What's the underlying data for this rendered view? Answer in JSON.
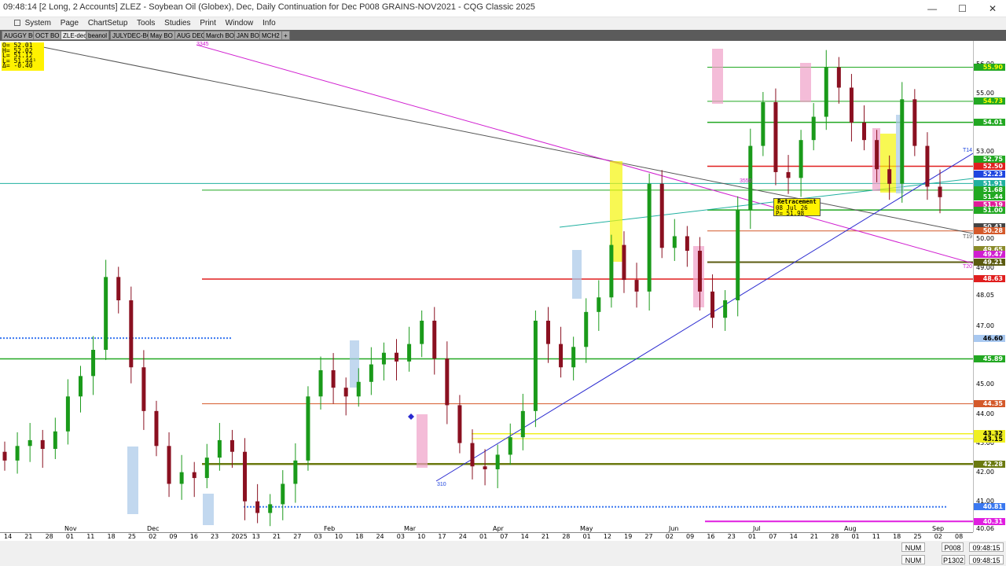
{
  "window": {
    "title": "09:48:14  [2 Long, 2 Accounts]  ZLEZ - Soybean Oil (Globex), Dec, Daily Continuation for Dec   P008 GRAINS-NOV2021 - CQG Classic 2025",
    "minimize": "—",
    "maximize": "☐",
    "close": "✕"
  },
  "menu": [
    "System",
    "Page",
    "ChartSetup",
    "Tools",
    "Studies",
    "Print",
    "Window",
    "Info"
  ],
  "tabs": [
    "AUGGY BO",
    "OCT BO",
    "ZLE-dec",
    "beanol",
    "JULYDEC-BO",
    "May BO",
    "AUG DEC",
    "March BO",
    "JAN BO",
    "MCH2",
    "+"
  ],
  "active_tab": "ZLE-dec",
  "ohlc": {
    "o": "O=  52.01",
    "h": "H=  52.02",
    "l": "L=  51.12",
    "last": "L=  51.44¹",
    "delta": "Δ=  -0.40"
  },
  "retracement": {
    "title": "Retracement",
    "date": "08  Jul  26",
    "price": "P=     51.98"
  },
  "annotations": {
    "a1": "3345",
    "a2": "3550",
    "a3": "310",
    "a4": "T14",
    "a5": "T19",
    "a6": "T20"
  },
  "price_labels": [
    "56.00",
    "55.00",
    "53.00",
    "51.00",
    "50.00",
    "49.00",
    "48.05",
    "47.00",
    "45.00",
    "44.00",
    "43.00",
    "42.00",
    "41.00",
    "40.06"
  ],
  "price_tags": [
    {
      "v": "55.90",
      "bg": "#22a822",
      "fg": "#ffff00"
    },
    {
      "v": "54.73",
      "bg": "#22a822",
      "fg": "#ffff00"
    },
    {
      "v": "54.01",
      "bg": "#22a822",
      "fg": "#ffffff"
    },
    {
      "v": "52.75",
      "bg": "#22a822",
      "fg": "#ffffff"
    },
    {
      "v": "52.50",
      "bg": "#e01e1e",
      "fg": "#ffffff"
    },
    {
      "v": "52.23",
      "bg": "#1e46e0",
      "fg": "#ffffff"
    },
    {
      "v": "51.91",
      "bg": "#20b0a0",
      "fg": "#ffffff"
    },
    {
      "v": "51.68",
      "bg": "#22a822",
      "fg": "#ffffff"
    },
    {
      "v": "51.44",
      "bg": "#22a822",
      "fg": "#ffffff"
    },
    {
      "v": "51.19",
      "bg": "#e01e9a",
      "fg": "#ffffff"
    },
    {
      "v": "51.00",
      "bg": "#22a822",
      "fg": "#ffffff"
    },
    {
      "v": "50.41",
      "bg": "#444444",
      "fg": "#ffffff"
    },
    {
      "v": "50.28",
      "bg": "#d4592a",
      "fg": "#ffffff"
    },
    {
      "v": "49.65",
      "bg": "#8a8a2a",
      "fg": "#ffffff"
    },
    {
      "v": "49.47",
      "bg": "#d01ed0",
      "fg": "#ffffff"
    },
    {
      "v": "49.21",
      "bg": "#5b5b10",
      "fg": "#ffffff"
    },
    {
      "v": "48.63",
      "bg": "#e01e1e",
      "fg": "#ffffff"
    },
    {
      "v": "46.60",
      "bg": "#a8c8f0",
      "fg": "#000000"
    },
    {
      "v": "45.89",
      "bg": "#22a822",
      "fg": "#ffffff"
    },
    {
      "v": "44.35",
      "bg": "#d4592a",
      "fg": "#ffffff"
    },
    {
      "v": "43.32",
      "bg": "#f0f020",
      "fg": "#000000"
    },
    {
      "v": "43.15",
      "bg": "#f0f020",
      "fg": "#000000"
    },
    {
      "v": "42.28",
      "bg": "#6b7a10",
      "fg": "#ffffff"
    },
    {
      "v": "40.81",
      "bg": "#3a78f0",
      "fg": "#ffffff"
    },
    {
      "v": "40.31",
      "bg": "#e01ee0",
      "fg": "#ffffff"
    }
  ],
  "x_days": [
    "14",
    "21",
    "28",
    "01",
    "11",
    "18",
    "25",
    "02",
    "09",
    "16",
    "23",
    "2025",
    "13",
    "21",
    "27",
    "03",
    "10",
    "18",
    "24",
    "03",
    "10",
    "17",
    "24",
    "01",
    "07",
    "14",
    "21",
    "28",
    "01",
    "12",
    "19",
    "27",
    "02",
    "09",
    "16",
    "23",
    "01",
    "07",
    "14",
    "21",
    "28",
    "01",
    "11",
    "18",
    "25",
    "02",
    "08"
  ],
  "x_months": [
    "Nov",
    "Dec",
    "Feb",
    "Mar",
    "Apr",
    "May",
    "Jun",
    "Jul",
    "Aug",
    "Sep"
  ],
  "status": {
    "num1": "NUM",
    "page": "P008",
    "time1": "09:48:15",
    "num2": "NUM",
    "acct": "P1302",
    "time2": "09:48:15"
  },
  "chart_data": {
    "type": "candlestick",
    "instrument": "ZLEZ - Soybean Oil (Globex), Dec, Daily Continuation for Dec",
    "ylim": [
      40,
      57
    ],
    "last": {
      "open": 52.01,
      "high": 52.02,
      "low": 51.12,
      "last": 51.44,
      "change": -0.4
    },
    "closes": [
      42.4,
      42.9,
      43.1,
      42.8,
      43.4,
      44.6,
      45.3,
      46.2,
      48.7,
      47.9,
      45.6,
      44.1,
      42.9,
      41.6,
      42.0,
      41.8,
      42.5,
      43.1,
      42.7,
      41.0,
      40.6,
      40.9,
      41.6,
      42.4,
      44.6,
      45.5,
      44.9,
      44.6,
      45.1,
      45.7,
      46.1,
      45.8,
      46.4,
      47.2,
      45.9,
      44.3,
      43.0,
      42.2,
      42.1,
      42.6,
      43.2,
      44.1,
      47.2,
      46.4,
      45.6,
      46.3,
      47.5,
      48.0,
      49.8,
      48.6,
      48.2,
      51.9,
      49.7,
      50.1,
      49.6,
      48.2,
      47.3,
      47.9,
      51.0,
      53.2,
      54.7,
      52.3,
      52.1,
      53.4,
      54.2,
      55.9,
      55.2,
      54.0,
      53.4,
      52.4,
      51.9,
      54.8,
      53.2,
      51.8,
      51.44
    ]
  }
}
